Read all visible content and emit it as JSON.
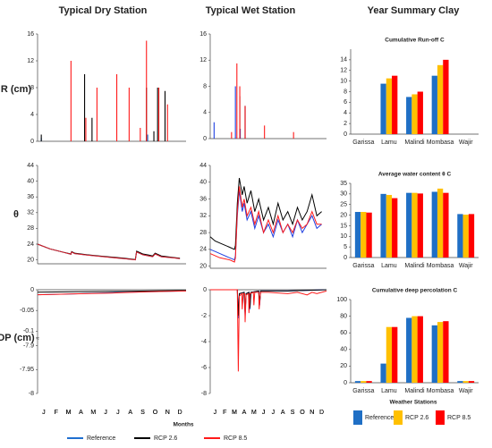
{
  "columns": [
    "Typical Dry Station",
    "Typical Wet Station",
    "Year Summary Clay"
  ],
  "rows": [
    "R (cm)",
    "θ",
    "DP (cm)"
  ],
  "months": [
    "J",
    "F",
    "M",
    "A",
    "M",
    "J",
    "J",
    "A",
    "S",
    "O",
    "N",
    "D"
  ],
  "x_label": "Months",
  "stations_label": "Weather Stations",
  "chart_data": [
    {
      "type": "spike",
      "xlim": [
        0,
        12
      ],
      "ylim": [
        0,
        16
      ],
      "yticks": [
        0,
        4,
        8,
        12,
        16
      ],
      "series": [
        {
          "name": "Reference",
          "color": "#1f6fd0",
          "x": [
            0.3,
            8.9
          ],
          "values": [
            0.5,
            1
          ]
        },
        {
          "name": "RCP 2.6",
          "color": "#000000",
          "x": [
            0.3,
            3.8,
            4.4,
            8.8,
            9.4,
            9.7,
            10.3
          ],
          "values": [
            1,
            10,
            3.5,
            8,
            1.5,
            8,
            7.5
          ]
        },
        {
          "name": "RCP 8.5",
          "color": "#ff1a1a",
          "x": [
            2.7,
            3.9,
            4.8,
            6.4,
            7.4,
            8.3,
            8.8,
            9.8,
            10.5
          ],
          "values": [
            12,
            3.5,
            8,
            10,
            8,
            2,
            15,
            8,
            5.5
          ]
        }
      ]
    },
    {
      "type": "spike",
      "xlim": [
        0,
        12
      ],
      "ylim": [
        0,
        16
      ],
      "yticks": [
        0,
        4,
        8,
        12,
        16
      ],
      "series": [
        {
          "name": "Reference",
          "color": "#1f3fe0",
          "x": [
            0.4,
            2.6,
            3.1,
            3.6
          ],
          "values": [
            2.5,
            8,
            1.5,
            5
          ]
        },
        {
          "name": "RCP 2.6",
          "color": "#000000",
          "x": [
            3.05,
            3.6
          ],
          "values": [
            6.5,
            5
          ]
        },
        {
          "name": "RCP 8.5",
          "color": "#ff1a1a",
          "x": [
            2.2,
            2.75,
            3.05,
            3.6,
            5.6,
            8.6
          ],
          "values": [
            1,
            11.5,
            8,
            5,
            2,
            1
          ]
        }
      ]
    },
    {
      "type": "bar",
      "title": "Cumulative Run-off C",
      "categories": [
        "Garissa",
        "Lamu",
        "Malindi",
        "Mombasa",
        "Wajir"
      ],
      "ylim": [
        0,
        16
      ],
      "yticks": [
        0,
        2,
        4,
        6,
        8,
        10,
        12,
        14
      ],
      "series": [
        {
          "name": "Reference",
          "color": "#1f6fc5",
          "values": [
            0,
            9.5,
            7,
            11,
            0
          ]
        },
        {
          "name": "RCP 2.6",
          "color": "#ffc000",
          "values": [
            0,
            10.5,
            7.5,
            13,
            0
          ]
        },
        {
          "name": "RCP 8.5",
          "color": "#ff0000",
          "values": [
            0,
            11,
            8,
            14,
            0
          ]
        }
      ]
    },
    {
      "type": "line",
      "xlim": [
        0,
        12
      ],
      "ylim": [
        19,
        44
      ],
      "yticks": [
        20,
        24,
        28,
        32,
        36,
        40,
        44
      ],
      "series": [
        {
          "name": "Reference",
          "color": "#1f6fd0",
          "x": [
            0,
            1,
            2,
            2.7,
            2.75,
            3,
            4,
            5,
            6,
            7,
            7.9,
            8,
            8.5,
            9,
            9.3,
            9.5,
            10,
            11,
            11.5
          ],
          "values": [
            24,
            22.8,
            22,
            21.4,
            22,
            21.6,
            21.2,
            20.9,
            20.6,
            20.3,
            20,
            22,
            21.3,
            21,
            20.8,
            21.5,
            20.8,
            20.5,
            20.3
          ]
        },
        {
          "name": "RCP 2.6",
          "color": "#000000",
          "x": [
            0,
            1,
            2,
            2.7,
            2.75,
            3,
            4,
            5,
            6,
            7,
            7.9,
            8,
            8.5,
            9,
            9.3,
            9.5,
            10,
            11,
            11.5
          ],
          "values": [
            24,
            22.8,
            22,
            21.5,
            22.1,
            21.7,
            21.3,
            21,
            20.7,
            20.4,
            20.1,
            22.2,
            21.5,
            21.2,
            21,
            21.7,
            21,
            20.6,
            20.4
          ]
        },
        {
          "name": "RCP 8.5",
          "color": "#e0202a",
          "x": [
            0,
            1,
            2,
            2.7,
            2.75,
            3,
            4,
            5,
            6,
            7,
            7.9,
            8,
            8.5,
            9,
            9.3,
            9.5,
            10,
            11,
            11.5
          ],
          "values": [
            24,
            22.8,
            22,
            21.4,
            22,
            21.6,
            21.2,
            20.9,
            20.6,
            20.3,
            20,
            22,
            21.3,
            21,
            20.8,
            21.5,
            20.8,
            20.5,
            20.3
          ]
        }
      ]
    },
    {
      "type": "line",
      "xlim": [
        0,
        12
      ],
      "ylim": [
        19.5,
        44
      ],
      "yticks": [
        20,
        24,
        28,
        32,
        36,
        40,
        44
      ],
      "series": [
        {
          "name": "Reference",
          "color": "#1f3fe0",
          "x": [
            0,
            0.5,
            1,
            2,
            2.5,
            2.6,
            2.8,
            3,
            3.3,
            3.5,
            3.8,
            4.2,
            4.6,
            5,
            5.5,
            6,
            6.5,
            7,
            7.5,
            8,
            8.5,
            9,
            9.5,
            10,
            10.5,
            11,
            11.5
          ],
          "values": [
            24,
            23.5,
            23,
            22,
            21.5,
            22.5,
            32,
            38,
            33,
            35,
            31,
            33,
            29,
            32,
            28,
            30,
            27,
            31,
            28,
            30,
            27,
            31,
            28,
            30,
            32,
            29,
            30
          ]
        },
        {
          "name": "RCP 2.6",
          "color": "#000000",
          "x": [
            0,
            0.5,
            1,
            2,
            2.5,
            2.6,
            2.8,
            3,
            3.3,
            3.5,
            3.8,
            4.2,
            4.6,
            5,
            5.5,
            6,
            6.5,
            7,
            7.5,
            8,
            8.5,
            9,
            9.5,
            10,
            10.5,
            11,
            11.5
          ],
          "values": [
            27,
            26,
            25.5,
            24.5,
            24,
            25,
            35,
            41,
            37,
            39,
            35,
            38,
            33,
            36,
            31,
            34,
            30,
            35,
            31,
            33,
            30,
            34,
            31,
            33,
            37,
            32,
            33
          ]
        },
        {
          "name": "RCP 8.5",
          "color": "#ff1a1a",
          "x": [
            0,
            0.5,
            1,
            2,
            2.5,
            2.6,
            2.8,
            3,
            3.3,
            3.5,
            3.8,
            4.2,
            4.6,
            5,
            5.5,
            6,
            6.5,
            7,
            7.5,
            8,
            8.5,
            9,
            9.5,
            10,
            10.5,
            11,
            11.5
          ],
          "values": [
            23,
            22.5,
            22,
            21.5,
            21,
            22,
            33,
            39,
            34,
            36,
            32,
            34,
            30,
            33,
            28,
            31,
            28,
            32,
            28,
            30,
            28,
            31,
            29,
            30,
            33,
            30,
            30
          ]
        }
      ]
    },
    {
      "type": "bar",
      "title": "Average water content θ C",
      "categories": [
        "Garissa",
        "Lamu",
        "Malindi",
        "Mombasa",
        "Wajir"
      ],
      "ylim": [
        0,
        35
      ],
      "yticks": [
        0,
        5,
        10,
        15,
        20,
        25,
        30,
        35
      ],
      "series": [
        {
          "name": "Reference",
          "color": "#1f6fc5",
          "values": [
            21.5,
            30,
            30.5,
            31,
            20.5
          ]
        },
        {
          "name": "RCP 2.6",
          "color": "#ffc000",
          "values": [
            21.5,
            29.5,
            30.5,
            32.5,
            20.2
          ]
        },
        {
          "name": "RCP 8.5",
          "color": "#ff0000",
          "values": [
            21.2,
            28,
            30.2,
            30.5,
            20.5
          ]
        }
      ]
    },
    {
      "type": "line",
      "xlim": [
        0,
        12
      ],
      "ylim": [
        -8,
        0
      ],
      "ybreak": [
        -7.9,
        -0.1
      ],
      "yticks": [
        0,
        -0.05,
        -0.1,
        -7.9,
        -7.95,
        -8
      ],
      "series": [
        {
          "name": "Reference",
          "color": "#1f6fd0",
          "x": [
            0,
            3,
            6,
            9,
            12
          ],
          "values": [
            -0.012,
            -0.01,
            -0.007,
            -0.005,
            -0.003
          ]
        },
        {
          "name": "RCP 2.6",
          "color": "#000000",
          "x": [
            0,
            3,
            6,
            9,
            12
          ],
          "values": [
            -0.006,
            -0.005,
            -0.004,
            -0.003,
            -0.002
          ]
        },
        {
          "name": "RCP 8.5",
          "color": "#ff1a1a",
          "x": [
            0,
            3,
            6,
            9,
            12
          ],
          "values": [
            -0.012,
            -0.01,
            -0.008,
            -0.005,
            -0.003
          ]
        }
      ]
    },
    {
      "type": "line",
      "xlim": [
        0,
        12
      ],
      "ylim": [
        -8,
        0
      ],
      "yticks": [
        0,
        -2,
        -4,
        -6,
        -8
      ],
      "series": [
        {
          "name": "Reference",
          "color": "#1f3fe0",
          "x": [
            0,
            2.8,
            2.9,
            3,
            3.5,
            3.6,
            3.7,
            4,
            4.1,
            4.2,
            5,
            5.1,
            5.2,
            8,
            12
          ],
          "values": [
            0,
            0,
            -2.2,
            -0.3,
            -0.2,
            -2,
            -0.3,
            -0.2,
            -1.5,
            -0.2,
            -0.1,
            -1.2,
            -0.1,
            -0.1,
            0
          ]
        },
        {
          "name": "RCP 2.6",
          "color": "#000000",
          "x": [
            0,
            2.8,
            2.9,
            3,
            3.5,
            3.6,
            3.7,
            4,
            4.1,
            4.2,
            5,
            5.1,
            5.2,
            8,
            12
          ],
          "values": [
            0,
            0,
            -2,
            -0.3,
            -0.2,
            -1.8,
            -0.3,
            -0.2,
            -1.4,
            -0.2,
            -0.1,
            -1,
            -0.1,
            -0.1,
            0
          ]
        },
        {
          "name": "RCP 8.5",
          "color": "#ff1a1a",
          "x": [
            0,
            2.8,
            2.9,
            3,
            3.25,
            3.3,
            3.4,
            3.55,
            3.6,
            3.7,
            3.95,
            4,
            4.1,
            4.45,
            4.5,
            4.6,
            5,
            5.05,
            5.2,
            6,
            8,
            9,
            10,
            10.5,
            11,
            12
          ],
          "values": [
            0,
            0,
            -6.3,
            -0.5,
            -0.3,
            -1.5,
            -0.3,
            -0.3,
            -2.5,
            -0.4,
            -0.3,
            -1.8,
            -0.3,
            -0.2,
            -1.2,
            -0.2,
            -0.2,
            -1.5,
            -0.2,
            -0.2,
            -0.3,
            -0.2,
            -0.4,
            -0.2,
            -0.3,
            -0.1
          ]
        }
      ]
    },
    {
      "type": "bar",
      "title": "Cumulative deep percolation C",
      "categories": [
        "Garissa",
        "Lamu",
        "Malindi",
        "Mombasa",
        "Wajir"
      ],
      "ylim": [
        0,
        100
      ],
      "yticks": [
        0,
        20,
        40,
        60,
        80,
        100
      ],
      "series": [
        {
          "name": "Reference",
          "color": "#1f6fc5",
          "values": [
            2,
            23,
            78,
            69,
            2
          ]
        },
        {
          "name": "RCP 2.6",
          "color": "#ffc000",
          "values": [
            2,
            67,
            80,
            73,
            2
          ]
        },
        {
          "name": "RCP 8.5",
          "color": "#ff0000",
          "values": [
            2,
            67,
            80,
            74,
            2
          ]
        }
      ]
    }
  ]
}
